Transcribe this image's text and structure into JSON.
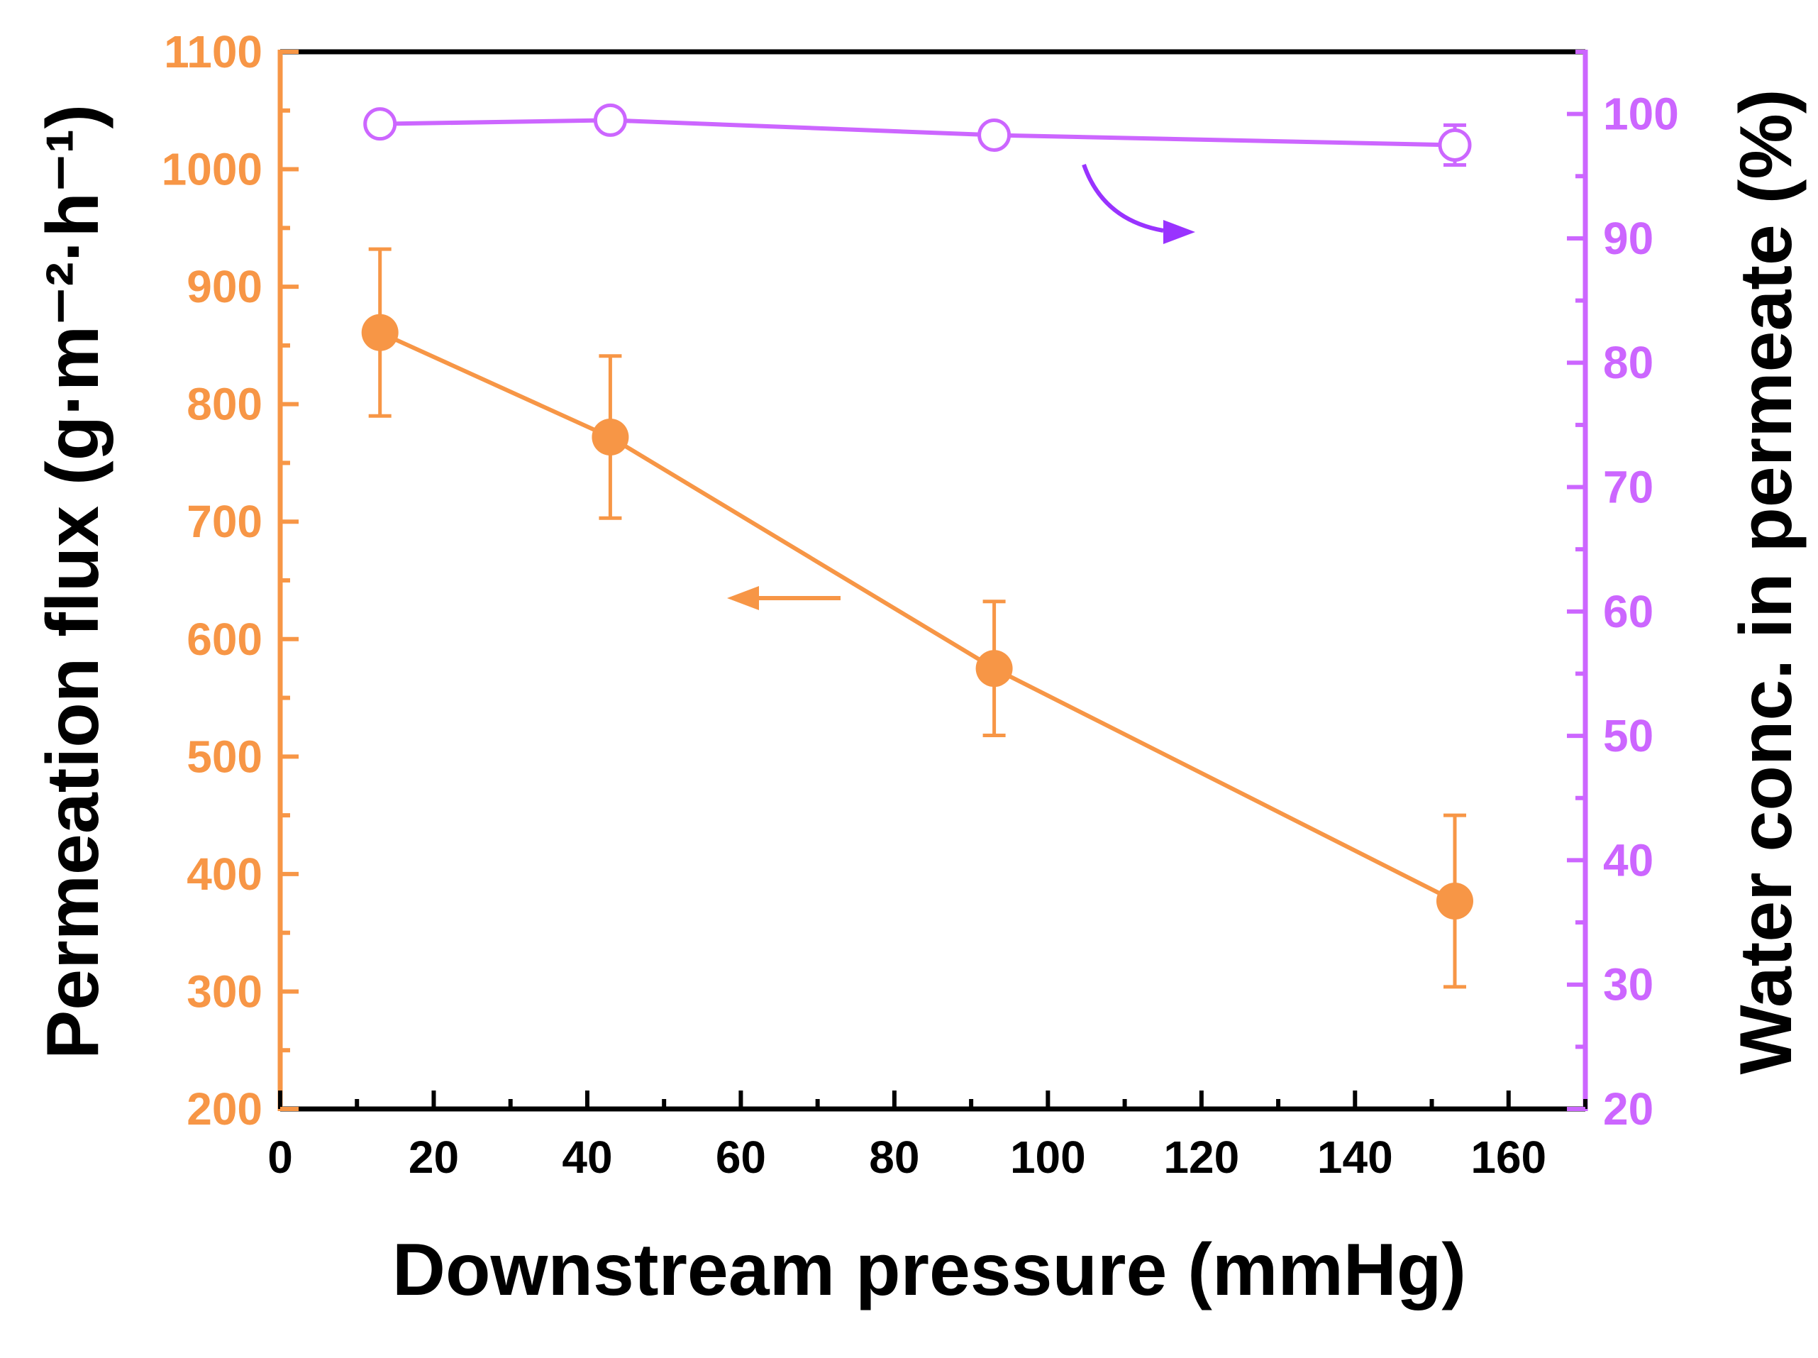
{
  "colors": {
    "flux": "#F79646",
    "water": "#CC66FF",
    "arrow_right": "#9933FF",
    "frame": "#000000"
  },
  "chart_data": {
    "type": "line",
    "xlabel": "Downstream pressure (mmHg)",
    "ylabel_left": "Permeation flux (g·m⁻²·h⁻¹)",
    "ylabel_right": "Water conc. in permeate (%)",
    "xlim": [
      0,
      170
    ],
    "xticks": [
      0,
      20,
      40,
      60,
      80,
      100,
      120,
      140,
      160
    ],
    "ylim_left": [
      200,
      1100
    ],
    "yticks_left": [
      200,
      300,
      400,
      500,
      600,
      700,
      800,
      900,
      1000,
      1100
    ],
    "ylim_right": [
      20,
      105
    ],
    "yticks_right": [
      20,
      30,
      40,
      50,
      60,
      70,
      80,
      90,
      100
    ],
    "series": [
      {
        "name": "Permeation flux",
        "axis": "left",
        "marker": "filled-circle",
        "x": [
          13,
          43,
          93,
          153
        ],
        "y": [
          861,
          772,
          575,
          377
        ],
        "err": [
          71,
          69,
          57,
          73
        ]
      },
      {
        "name": "Water conc. in permeate",
        "axis": "right",
        "marker": "open-circle",
        "x": [
          13,
          43,
          93,
          153
        ],
        "y": [
          99.2,
          99.5,
          98.3,
          97.5
        ],
        "err": [
          0.6,
          0.6,
          0.7,
          1.6
        ]
      }
    ],
    "annotations": [
      {
        "type": "arrow",
        "points_to": "left-axis",
        "series": "Permeation flux"
      },
      {
        "type": "arrow",
        "points_to": "right-axis",
        "series": "Water conc. in permeate"
      }
    ]
  }
}
